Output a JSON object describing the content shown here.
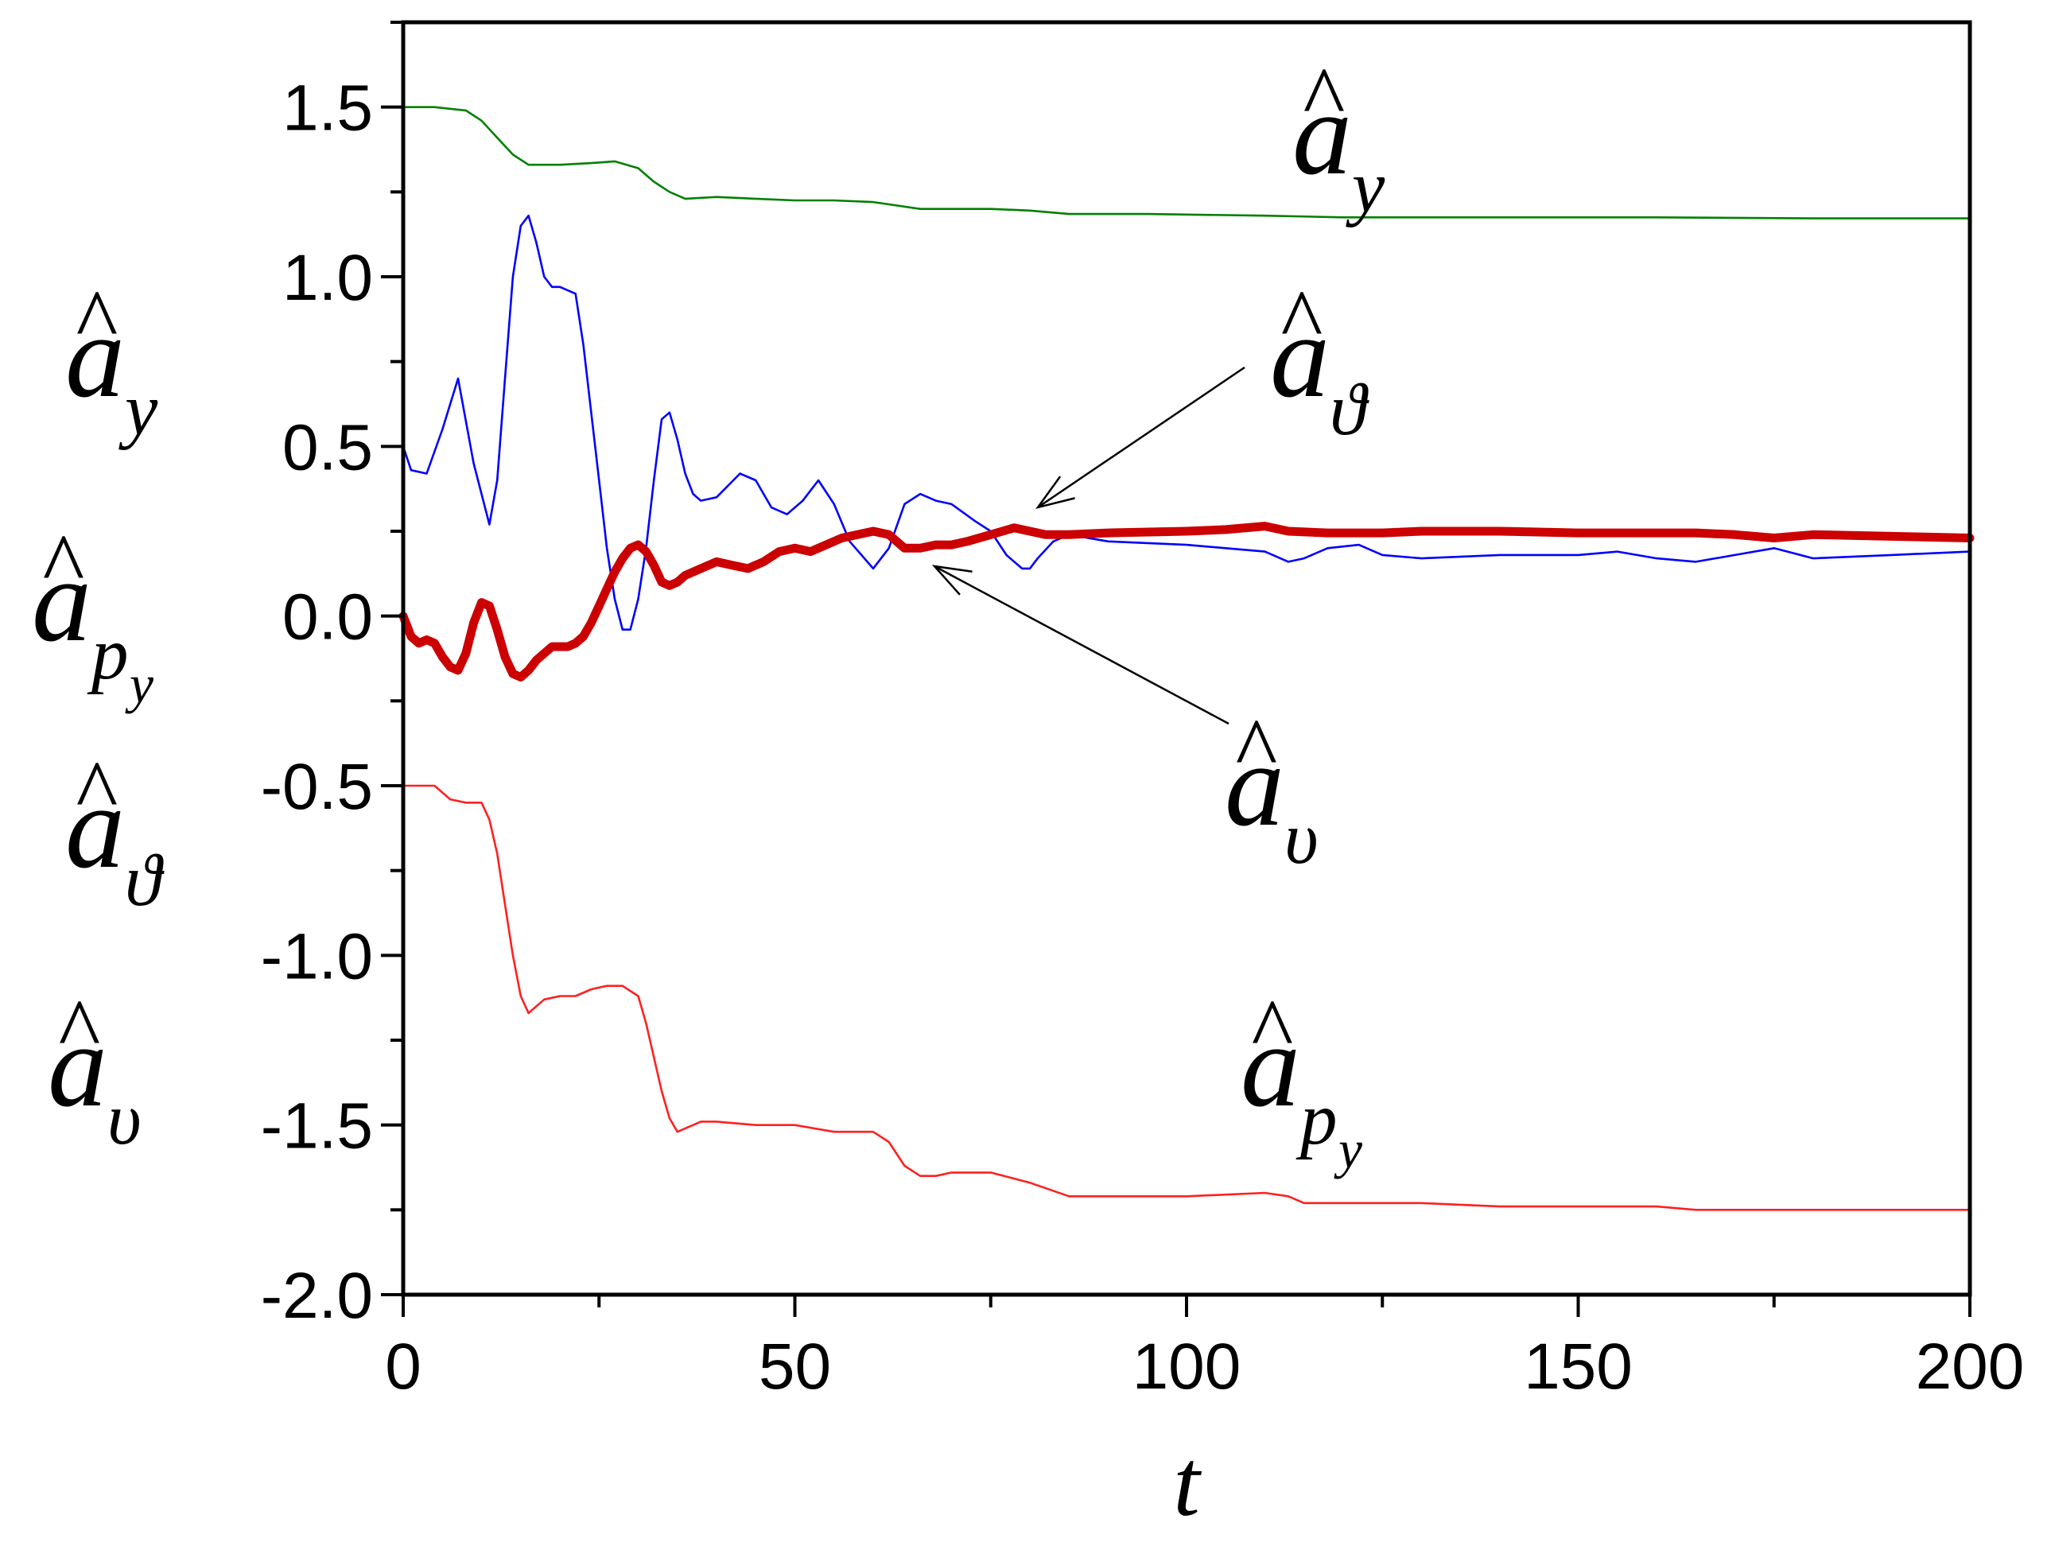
{
  "chart_data": {
    "type": "line",
    "title": "",
    "xlabel": "t",
    "ylabel_symbols": [
      "a_y",
      "a_{p_y}",
      "a_ϑ",
      "a_υ"
    ],
    "xlim": [
      0,
      200
    ],
    "ylim": [
      -2.0,
      1.75
    ],
    "x_ticks": [
      "0",
      "50",
      "100",
      "150",
      "200"
    ],
    "y_ticks": [
      "1.5",
      "1.0",
      "0.5",
      "0.0",
      "-0.5",
      "-1.0",
      "-1.5",
      "-2.0"
    ],
    "grid": false,
    "legend": "none",
    "series": [
      {
        "name": "a_y",
        "color": "#008000",
        "width": "thin",
        "x": [
          0,
          4,
          8,
          10,
          12,
          14,
          16,
          20,
          24,
          27,
          30,
          32,
          34,
          36,
          40,
          45,
          50,
          55,
          60,
          63,
          66,
          70,
          75,
          80,
          85,
          95,
          110,
          120,
          140,
          160,
          180,
          200
        ],
        "y": [
          1.5,
          1.5,
          1.49,
          1.46,
          1.41,
          1.36,
          1.33,
          1.33,
          1.335,
          1.34,
          1.32,
          1.28,
          1.25,
          1.23,
          1.235,
          1.23,
          1.225,
          1.225,
          1.22,
          1.21,
          1.2,
          1.2,
          1.2,
          1.195,
          1.185,
          1.185,
          1.18,
          1.175,
          1.175,
          1.175,
          1.172,
          1.172
        ]
      },
      {
        "name": "a_ϑ",
        "color": "#0000ff",
        "width": "thin",
        "x": [
          0,
          1,
          3,
          5,
          7,
          9,
          11,
          12,
          13,
          14,
          15,
          16,
          17,
          18,
          19,
          20,
          22,
          23,
          24,
          25,
          26,
          27,
          28,
          29,
          30,
          31,
          32,
          33,
          34,
          35,
          36,
          37,
          38,
          40,
          43,
          45,
          47,
          49,
          51,
          53,
          55,
          57,
          60,
          62,
          64,
          66,
          68,
          70,
          73,
          75,
          77,
          79,
          80,
          81,
          83,
          85,
          90,
          100,
          105,
          110,
          113,
          115,
          118,
          122,
          125,
          130,
          140,
          150,
          155,
          160,
          165,
          170,
          175,
          180,
          190,
          200
        ],
        "y": [
          0.5,
          0.43,
          0.42,
          0.55,
          0.7,
          0.45,
          0.27,
          0.4,
          0.7,
          1.0,
          1.15,
          1.18,
          1.1,
          1.0,
          0.97,
          0.97,
          0.95,
          0.8,
          0.6,
          0.4,
          0.2,
          0.05,
          -0.04,
          -0.04,
          0.05,
          0.2,
          0.4,
          0.58,
          0.6,
          0.52,
          0.42,
          0.36,
          0.34,
          0.35,
          0.42,
          0.4,
          0.32,
          0.3,
          0.34,
          0.4,
          0.33,
          0.22,
          0.14,
          0.2,
          0.33,
          0.36,
          0.34,
          0.33,
          0.28,
          0.25,
          0.18,
          0.14,
          0.14,
          0.17,
          0.22,
          0.24,
          0.22,
          0.21,
          0.2,
          0.19,
          0.16,
          0.17,
          0.2,
          0.21,
          0.18,
          0.17,
          0.18,
          0.18,
          0.19,
          0.17,
          0.16,
          0.18,
          0.2,
          0.17,
          0.18,
          0.19
        ]
      },
      {
        "name": "a_υ",
        "color": "#cc0000",
        "width": "thick",
        "x": [
          0,
          1,
          2,
          3,
          4,
          5,
          6,
          7,
          8,
          9,
          10,
          11,
          12,
          13,
          14,
          15,
          16,
          17,
          18,
          19,
          20,
          21,
          22,
          23,
          24,
          25,
          26,
          27,
          28,
          29,
          30,
          31,
          32,
          33,
          34,
          35,
          36,
          38,
          40,
          42,
          44,
          46,
          48,
          50,
          52,
          54,
          56,
          58,
          60,
          62,
          64,
          66,
          68,
          70,
          72,
          75,
          78,
          80,
          82,
          85,
          90,
          100,
          105,
          110,
          113,
          118,
          125,
          130,
          140,
          150,
          160,
          165,
          170,
          175,
          180,
          190,
          200
        ],
        "y": [
          0.0,
          -0.06,
          -0.08,
          -0.07,
          -0.08,
          -0.12,
          -0.15,
          -0.16,
          -0.11,
          -0.02,
          0.04,
          0.03,
          -0.04,
          -0.12,
          -0.17,
          -0.18,
          -0.16,
          -0.13,
          -0.11,
          -0.09,
          -0.09,
          -0.09,
          -0.08,
          -0.06,
          -0.02,
          0.03,
          0.08,
          0.13,
          0.17,
          0.2,
          0.21,
          0.19,
          0.15,
          0.1,
          0.09,
          0.1,
          0.12,
          0.14,
          0.16,
          0.15,
          0.14,
          0.16,
          0.19,
          0.2,
          0.19,
          0.21,
          0.23,
          0.24,
          0.25,
          0.24,
          0.2,
          0.2,
          0.21,
          0.21,
          0.22,
          0.24,
          0.26,
          0.25,
          0.24,
          0.24,
          0.245,
          0.25,
          0.255,
          0.265,
          0.25,
          0.245,
          0.245,
          0.25,
          0.25,
          0.245,
          0.245,
          0.245,
          0.24,
          0.23,
          0.24,
          0.235,
          0.23
        ]
      },
      {
        "name": "a_{p_y}",
        "color": "#ff2020",
        "width": "thin",
        "x": [
          0,
          2,
          4,
          6,
          8,
          10,
          11,
          12,
          13,
          14,
          15,
          16,
          17,
          18,
          20,
          22,
          24,
          26,
          28,
          30,
          31,
          32,
          33,
          34,
          35,
          36,
          38,
          40,
          45,
          50,
          55,
          60,
          62,
          64,
          66,
          68,
          70,
          75,
          80,
          85,
          90,
          100,
          110,
          113,
          115,
          120,
          125,
          130,
          140,
          150,
          160,
          165,
          170,
          180,
          190,
          200
        ],
        "y": [
          -0.5,
          -0.5,
          -0.5,
          -0.54,
          -0.55,
          -0.55,
          -0.6,
          -0.7,
          -0.85,
          -1.0,
          -1.12,
          -1.17,
          -1.15,
          -1.13,
          -1.12,
          -1.12,
          -1.1,
          -1.09,
          -1.09,
          -1.12,
          -1.2,
          -1.3,
          -1.4,
          -1.48,
          -1.52,
          -1.51,
          -1.49,
          -1.49,
          -1.5,
          -1.5,
          -1.52,
          -1.52,
          -1.55,
          -1.62,
          -1.65,
          -1.65,
          -1.64,
          -1.64,
          -1.67,
          -1.71,
          -1.71,
          -1.71,
          -1.7,
          -1.71,
          -1.73,
          -1.73,
          -1.73,
          -1.73,
          -1.74,
          -1.74,
          -1.74,
          -1.75,
          -1.75,
          -1.75,
          -1.75,
          -1.75
        ]
      }
    ],
    "annotations": [
      {
        "label": "a_y",
        "base": "a",
        "sub": "y"
      },
      {
        "label": "a_ϑ",
        "base": "a",
        "sub": "ϑ"
      },
      {
        "label": "a_υ",
        "base": "a",
        "sub": "υ"
      },
      {
        "label": "a_{p_y}",
        "base": "a",
        "sub": "p",
        "subsub": "y"
      }
    ]
  }
}
